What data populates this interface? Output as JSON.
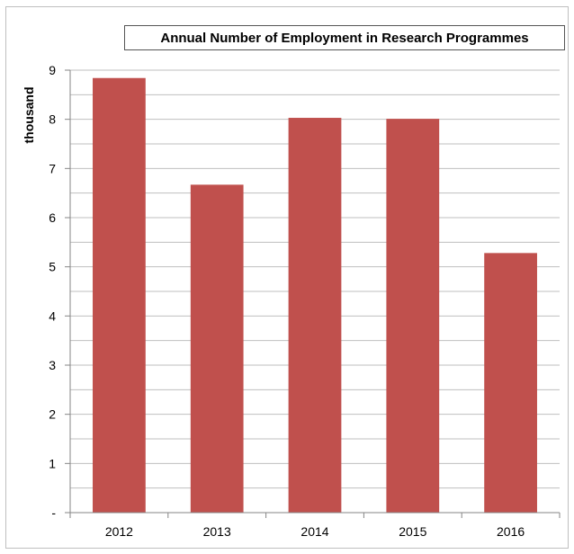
{
  "chart_data": {
    "type": "bar",
    "title": "Annual Number of Employment in Research Programmes",
    "xlabel": "",
    "ylabel": "thousand",
    "categories": [
      "2012",
      "2013",
      "2014",
      "2015",
      "2016"
    ],
    "values": [
      8.84,
      6.67,
      8.03,
      8.01,
      5.28
    ],
    "ylim": [
      0,
      9
    ],
    "yticks": [
      0,
      1,
      2,
      3,
      4,
      5,
      6,
      7,
      8,
      9
    ],
    "ytick_labels": [
      "-",
      "1",
      "2",
      "3",
      "4",
      "5",
      "6",
      "7",
      "8",
      "9"
    ],
    "minor_gridlines": true,
    "grid": true,
    "legend": "none",
    "bar_color": "#c0504d",
    "grid_color": "#bfbfbf"
  }
}
